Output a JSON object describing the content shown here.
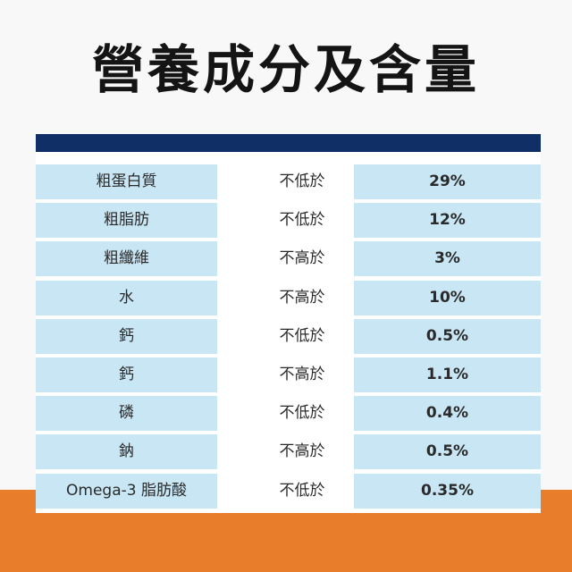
{
  "title": "營養成分及含量",
  "colors": {
    "navy": "#0f2f66",
    "cell_blue": "#c9e6f5",
    "orange": "#e87d2c"
  },
  "rows": [
    {
      "name": "粗蛋白質",
      "condition": "不低於",
      "value": "29%"
    },
    {
      "name": "粗脂肪",
      "condition": "不低於",
      "value": "12%"
    },
    {
      "name": "粗纖維",
      "condition": "不高於",
      "value": "3%"
    },
    {
      "name": "水",
      "condition": "不高於",
      "value": "10%"
    },
    {
      "name": "鈣",
      "condition": "不低於",
      "value": "0.5%"
    },
    {
      "name": "鈣",
      "condition": "不高於",
      "value": "1.1%"
    },
    {
      "name": "磷",
      "condition": "不低於",
      "value": "0.4%"
    },
    {
      "name": "鈉",
      "condition": "不高於",
      "value": "0.5%"
    },
    {
      "name": "Omega-3 脂肪酸",
      "condition": "不低於",
      "value": "0.35%"
    }
  ]
}
